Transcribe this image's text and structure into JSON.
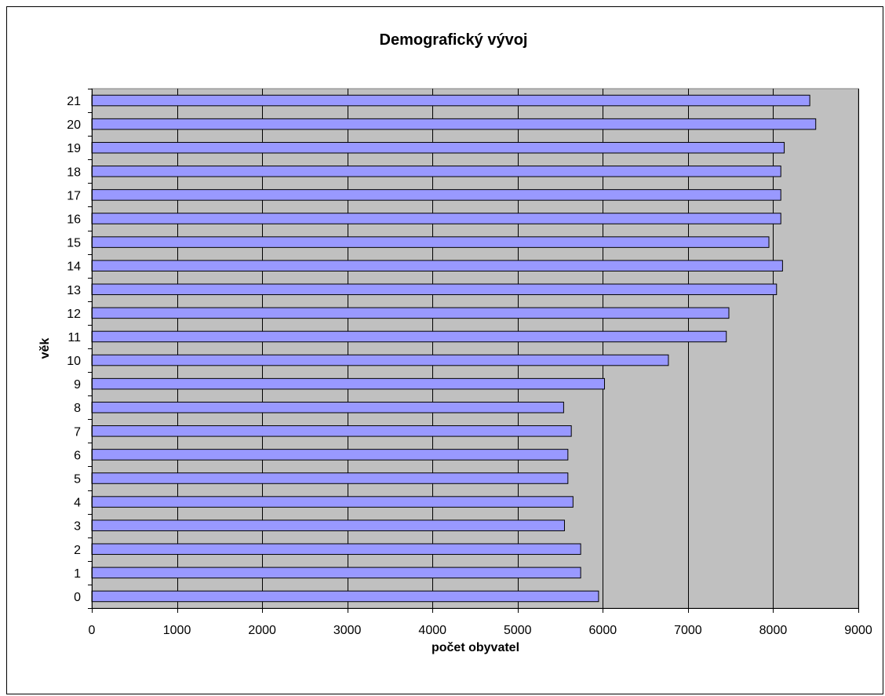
{
  "chart_data": {
    "type": "bar",
    "orientation": "horizontal",
    "title": "Demografický vývoj",
    "xlabel": "počet obyvatel",
    "ylabel": "věk",
    "categories": [
      "0",
      "1",
      "2",
      "3",
      "4",
      "5",
      "6",
      "7",
      "8",
      "9",
      "10",
      "11",
      "12",
      "13",
      "14",
      "15",
      "16",
      "17",
      "18",
      "19",
      "20",
      "21"
    ],
    "values": [
      5950,
      5740,
      5740,
      5550,
      5650,
      5590,
      5590,
      5630,
      5540,
      6020,
      6770,
      7450,
      7480,
      8040,
      8110,
      7950,
      8090,
      8090,
      8090,
      8130,
      8500,
      8430
    ],
    "xlim": [
      0,
      9000
    ],
    "xticks": [
      0,
      1000,
      2000,
      3000,
      4000,
      5000,
      6000,
      7000,
      8000,
      9000
    ],
    "grid": "vertical",
    "legend": "none",
    "colors": {
      "plot_background": "#c0c0c0",
      "bar_fill": "#9999ff",
      "bar_stroke": "#000000",
      "gridline": "#000000"
    }
  }
}
